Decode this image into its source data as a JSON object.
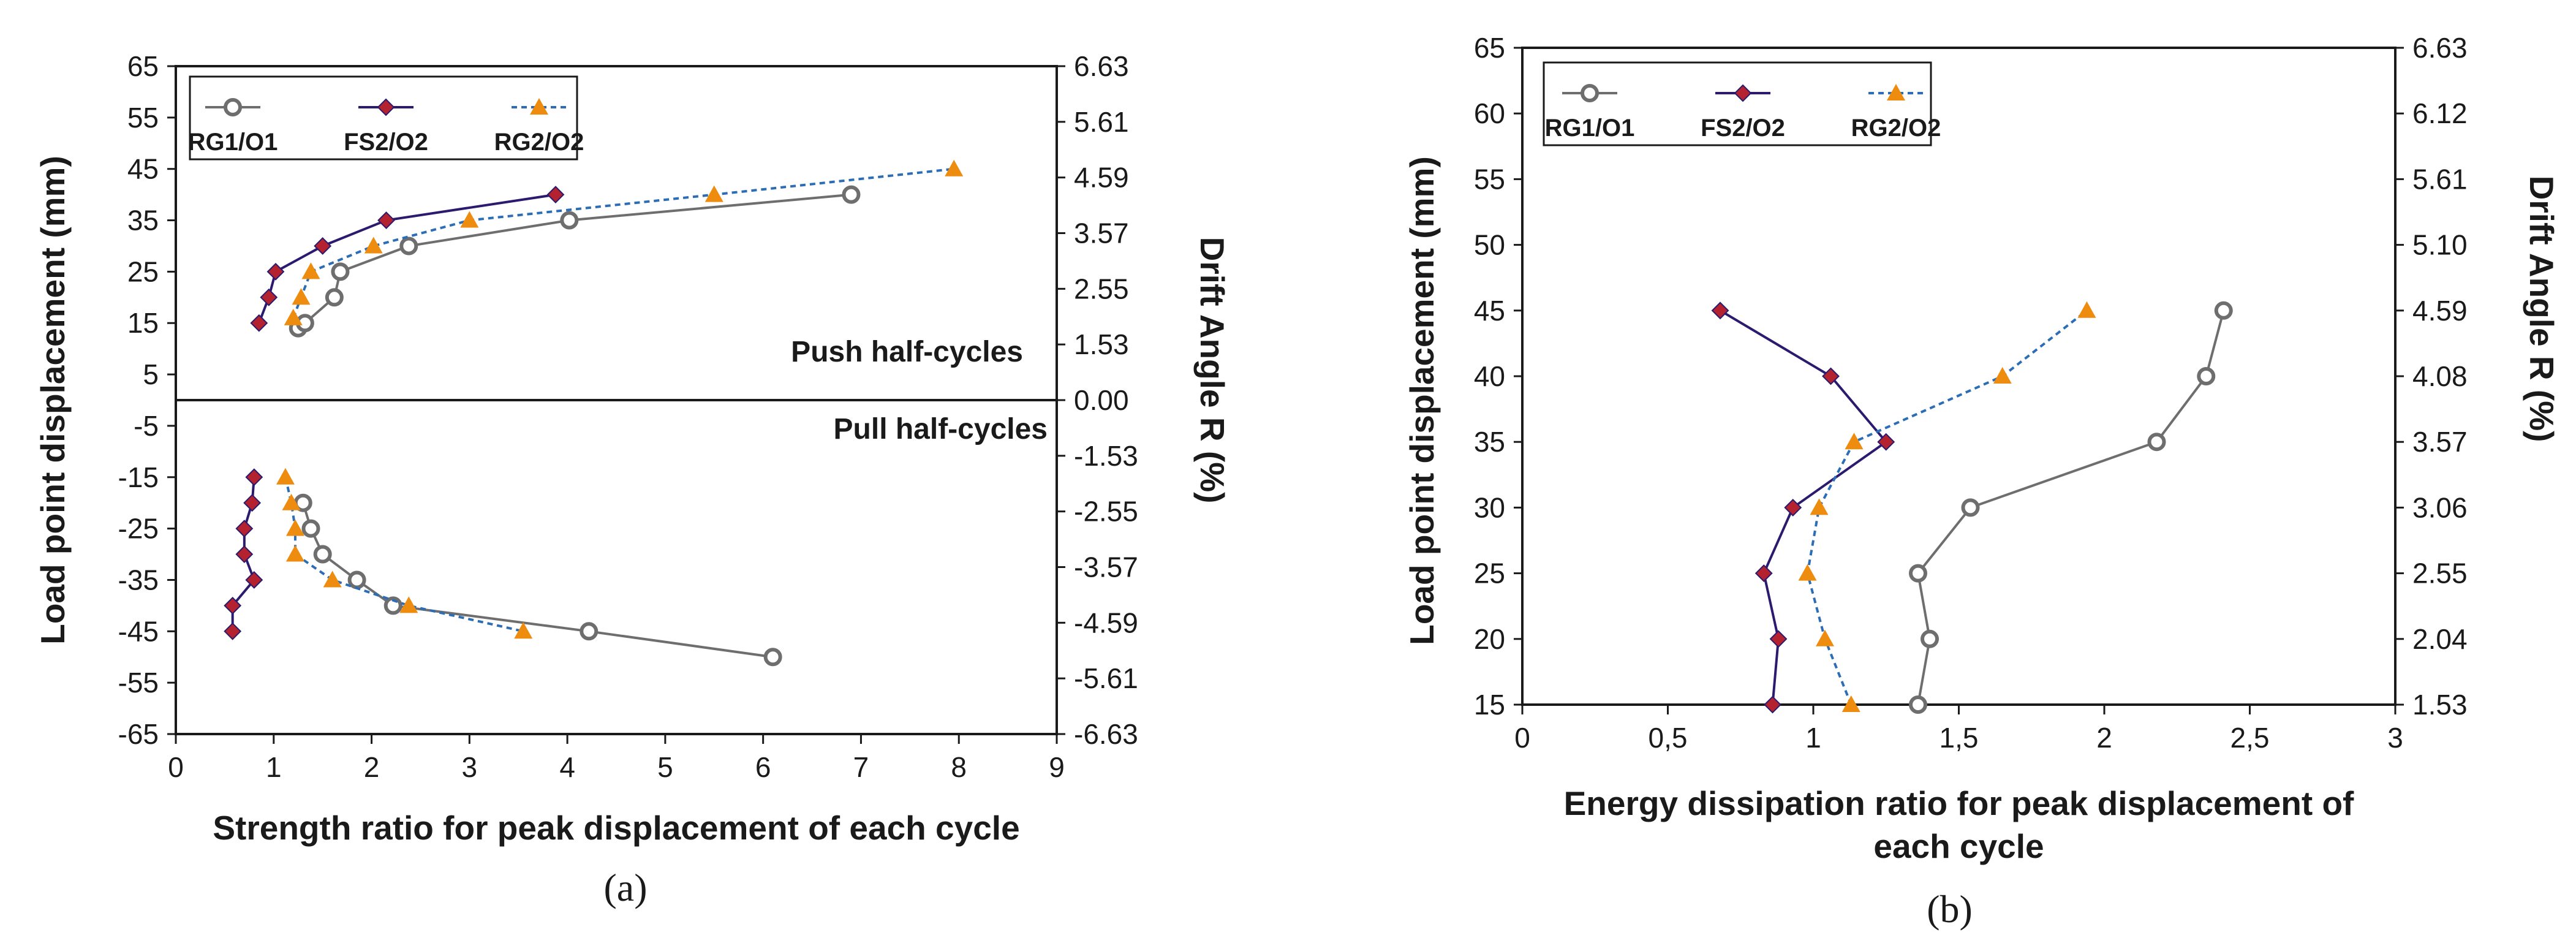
{
  "colors": {
    "rg1": "#6e6e6e",
    "fs2_line": "#2b1a6e",
    "fs2_marker": "#b3222e",
    "rg2_line": "#2c6db5",
    "rg2_marker": "#ee8c10",
    "axis": "#1a1a1a"
  },
  "chart_data": [
    {
      "type": "line",
      "panel_label": "(a)",
      "title": "",
      "xlabel": "Strength ratio for peak displacement of each cycle",
      "ylabel": "Load point displacement (mm)",
      "y2label": "Drift Angle R (%)",
      "xlim": [
        0,
        9
      ],
      "ylim": [
        -65,
        65
      ],
      "xticks": [
        "0",
        "1",
        "2",
        "3",
        "4",
        "5",
        "6",
        "7",
        "8",
        "9"
      ],
      "yticks": [
        "65",
        "55",
        "45",
        "35",
        "25",
        "15",
        "5",
        "-5",
        "-15",
        "-25",
        "-35",
        "-45",
        "-55",
        "-65"
      ],
      "y2ticks": [
        "6.63",
        "5.61",
        "4.59",
        "3.57",
        "2.55",
        "1.53",
        "0.00",
        "-1.53",
        "-2.55",
        "-3.57",
        "-4.59",
        "-5.61",
        "-6.63"
      ],
      "annotations": [
        "Push half-cycles",
        "Pull half-cycles"
      ],
      "legend_position": "top-left",
      "series": [
        {
          "name": "RG1/O1",
          "key": "rg1",
          "push": [
            [
              1.25,
              14
            ],
            [
              1.32,
              15
            ],
            [
              1.62,
              20
            ],
            [
              1.68,
              25
            ],
            [
              2.38,
              30
            ],
            [
              4.02,
              35
            ],
            [
              6.9,
              40
            ]
          ],
          "pull": [
            [
              1.3,
              -20
            ],
            [
              1.38,
              -25
            ],
            [
              1.5,
              -30
            ],
            [
              1.85,
              -35
            ],
            [
              2.22,
              -40
            ],
            [
              4.22,
              -45
            ],
            [
              6.1,
              -50
            ]
          ]
        },
        {
          "name": "FS2/O2",
          "key": "fs2",
          "push": [
            [
              0.85,
              15
            ],
            [
              0.95,
              20
            ],
            [
              1.02,
              25
            ],
            [
              1.5,
              30
            ],
            [
              2.15,
              35
            ],
            [
              3.88,
              40
            ]
          ],
          "pull": [
            [
              0.8,
              -15
            ],
            [
              0.78,
              -20
            ],
            [
              0.7,
              -25
            ],
            [
              0.7,
              -30
            ],
            [
              0.8,
              -35
            ],
            [
              0.58,
              -40
            ],
            [
              0.58,
              -45
            ]
          ]
        },
        {
          "name": "RG2/O2",
          "key": "rg2",
          "push": [
            [
              1.2,
              16
            ],
            [
              1.28,
              20
            ],
            [
              1.38,
              25
            ],
            [
              2.02,
              30
            ],
            [
              3.0,
              35
            ],
            [
              5.5,
              40
            ],
            [
              7.95,
              45
            ]
          ],
          "pull": [
            [
              1.12,
              -15
            ],
            [
              1.18,
              -20
            ],
            [
              1.22,
              -25
            ],
            [
              1.22,
              -30
            ],
            [
              1.6,
              -35
            ],
            [
              2.38,
              -40
            ],
            [
              3.55,
              -45
            ]
          ]
        }
      ]
    },
    {
      "type": "line",
      "panel_label": "(b)",
      "title": "",
      "xlabel": "Energy dissipation ratio for peak displacement of each cycle",
      "xlabel_lines": [
        "Energy dissipation ratio for peak displacement of",
        "each cycle"
      ],
      "ylabel": "Load point displacement (mm)",
      "y2label": "Drift Angle R (%)",
      "xlim": [
        0,
        3
      ],
      "ylim": [
        15,
        65
      ],
      "xticks": [
        "0",
        "0,5",
        "1",
        "1,5",
        "2",
        "2,5",
        "3"
      ],
      "yticks": [
        "65",
        "60",
        "55",
        "50",
        "45",
        "40",
        "35",
        "30",
        "25",
        "20",
        "15"
      ],
      "y2ticks": [
        "6.63",
        "6.12",
        "5.61",
        "5.10",
        "4.59",
        "4.08",
        "3.57",
        "3.06",
        "2.55",
        "2.04",
        "1.53"
      ],
      "legend_position": "top-left",
      "series": [
        {
          "name": "RG1/O1",
          "key": "rg1",
          "points": [
            [
              1.36,
              15
            ],
            [
              1.4,
              20
            ],
            [
              1.36,
              25
            ],
            [
              1.54,
              30
            ],
            [
              2.18,
              35
            ],
            [
              2.35,
              40
            ],
            [
              2.41,
              45
            ]
          ]
        },
        {
          "name": "FS2/O2",
          "key": "fs2",
          "points": [
            [
              0.86,
              15
            ],
            [
              0.88,
              20
            ],
            [
              0.83,
              25
            ],
            [
              0.93,
              30
            ],
            [
              1.25,
              35
            ],
            [
              1.06,
              40
            ],
            [
              0.68,
              45
            ]
          ]
        },
        {
          "name": "RG2/O2",
          "key": "rg2",
          "points": [
            [
              1.13,
              15
            ],
            [
              1.04,
              20
            ],
            [
              0.98,
              25
            ],
            [
              1.02,
              30
            ],
            [
              1.14,
              35
            ],
            [
              1.65,
              40
            ],
            [
              1.94,
              45
            ]
          ]
        }
      ]
    }
  ]
}
